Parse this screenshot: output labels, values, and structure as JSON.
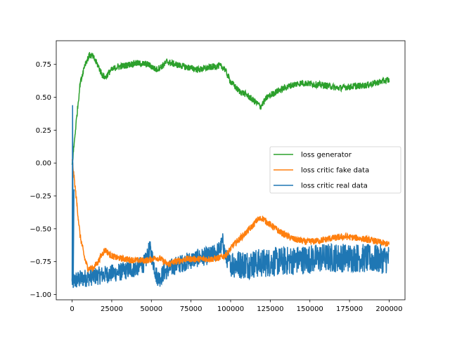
{
  "chart_data": {
    "type": "line",
    "title": "",
    "xlabel": "",
    "ylabel": "",
    "xlim": [
      -10000,
      210000
    ],
    "ylim": [
      -1.04,
      0.93
    ],
    "x_ticks": [
      0,
      25000,
      50000,
      75000,
      100000,
      125000,
      150000,
      175000,
      200000
    ],
    "x_tick_labels": [
      "0",
      "25000",
      "50000",
      "75000",
      "100000",
      "125000",
      "150000",
      "175000",
      "200000"
    ],
    "y_ticks": [
      0.75,
      0.5,
      0.25,
      0.0,
      -0.25,
      -0.5,
      -0.75,
      -1.0
    ],
    "y_tick_labels": [
      "0.75",
      "0.50",
      "0.25",
      "0.00",
      "−0.25",
      "−0.50",
      "−0.75",
      "−1.00"
    ],
    "grid": false,
    "legend_position": "center-right",
    "series": [
      {
        "name": "loss generator",
        "color": "#2ca02c",
        "x": [
          0,
          2500,
          5000,
          8000,
          11000,
          13000,
          16000,
          19000,
          21000,
          24000,
          28000,
          33000,
          40000,
          48000,
          53000,
          56000,
          60000,
          65000,
          72000,
          80000,
          88000,
          93000,
          96000,
          100000,
          105000,
          110000,
          115000,
          119000,
          123000,
          130000,
          138000,
          145000,
          152000,
          160000,
          168000,
          175000,
          185000,
          195000,
          200000
        ],
        "y": [
          -0.02,
          0.3,
          0.6,
          0.75,
          0.82,
          0.81,
          0.75,
          0.67,
          0.65,
          0.7,
          0.73,
          0.74,
          0.76,
          0.75,
          0.71,
          0.73,
          0.77,
          0.75,
          0.73,
          0.71,
          0.73,
          0.74,
          0.72,
          0.62,
          0.55,
          0.52,
          0.47,
          0.43,
          0.5,
          0.55,
          0.59,
          0.61,
          0.6,
          0.59,
          0.57,
          0.58,
          0.59,
          0.62,
          0.63
        ],
        "noise": 0.025
      },
      {
        "name": "loss critic fake data",
        "color": "#ff7f0e",
        "x": [
          0,
          2500,
          5000,
          8000,
          10000,
          13000,
          16000,
          19000,
          21000,
          24000,
          28000,
          33000,
          40000,
          48000,
          53000,
          56000,
          60000,
          65000,
          72000,
          80000,
          88000,
          93000,
          97000,
          102000,
          108000,
          113000,
          117000,
          120000,
          125000,
          132000,
          140000,
          148000,
          156000,
          165000,
          172000,
          180000,
          190000,
          200000
        ],
        "y": [
          0.03,
          -0.25,
          -0.55,
          -0.73,
          -0.8,
          -0.8,
          -0.76,
          -0.69,
          -0.66,
          -0.7,
          -0.72,
          -0.73,
          -0.74,
          -0.74,
          -0.72,
          -0.73,
          -0.77,
          -0.75,
          -0.73,
          -0.73,
          -0.73,
          -0.72,
          -0.7,
          -0.62,
          -0.55,
          -0.49,
          -0.43,
          -0.42,
          -0.47,
          -0.53,
          -0.58,
          -0.6,
          -0.59,
          -0.57,
          -0.56,
          -0.57,
          -0.59,
          -0.62
        ],
        "noise": 0.025
      },
      {
        "name": "loss critic real data",
        "color": "#1f77b4",
        "x": [
          0,
          3000,
          6000,
          10000,
          15000,
          20000,
          25000,
          30000,
          40000,
          46000,
          49000,
          51000,
          53000,
          55000,
          58000,
          65000,
          72000,
          80000,
          88000,
          93000,
          95000,
          97000,
          100000,
          105000,
          110000,
          120000,
          130000,
          140000,
          150000,
          160000,
          170000,
          180000,
          190000,
          200000
        ],
        "y": [
          -0.9,
          -0.89,
          -0.88,
          -0.87,
          -0.86,
          -0.85,
          -0.84,
          -0.83,
          -0.8,
          -0.76,
          -0.65,
          -0.74,
          -0.85,
          -0.88,
          -0.83,
          -0.78,
          -0.75,
          -0.72,
          -0.7,
          -0.66,
          -0.6,
          -0.72,
          -0.76,
          -0.77,
          -0.77,
          -0.76,
          -0.75,
          -0.74,
          -0.73,
          -0.72,
          -0.72,
          -0.72,
          -0.73,
          -0.73
        ],
        "noise": 0.07
      }
    ],
    "legend_order": [
      "loss generator",
      "loss critic fake data",
      "loss critic real data"
    ]
  }
}
